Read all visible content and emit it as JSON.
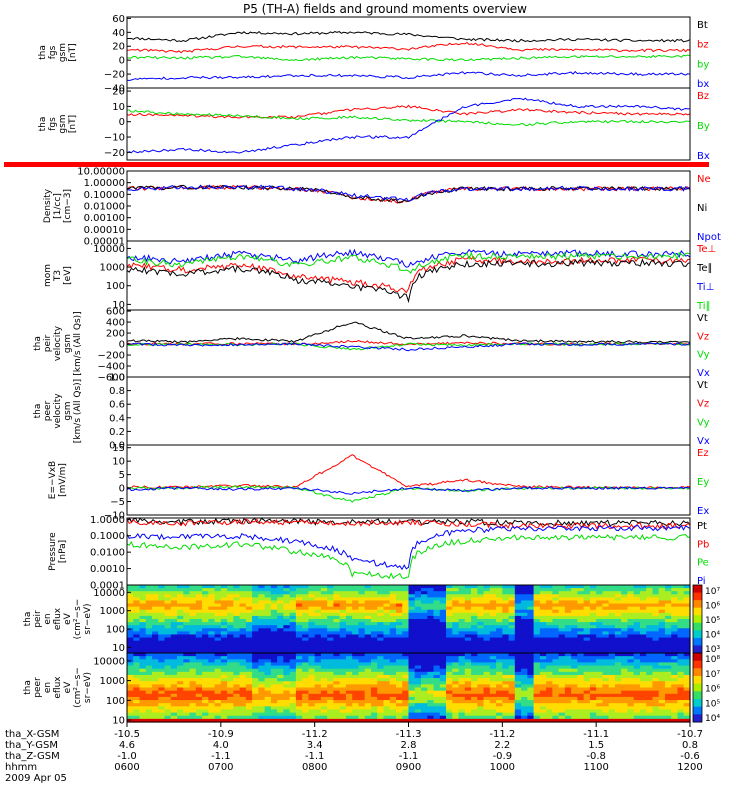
{
  "chart_data": {
    "type": "line",
    "title": "P5 (TH-A) fields and ground moments overview",
    "date": "2009 Apr 05",
    "x_time_ticks": [
      "0600",
      "0700",
      "0800",
      "0900",
      "1000",
      "1100",
      "1200"
    ],
    "time_range": [
      "0600",
      "1200"
    ],
    "orbit_rows": [
      {
        "label": "tha_X-GSM",
        "values": [
          "-10.5",
          "-10.9",
          "-11.2",
          "-11.3",
          "-11.2",
          "-11.1",
          "-10.7"
        ]
      },
      {
        "label": "tha_Y-GSM",
        "values": [
          "4.6",
          "4.0",
          "3.4",
          "2.8",
          "2.2",
          "1.5",
          "0.8"
        ]
      },
      {
        "label": "tha_Z-GSM",
        "values": [
          "-1.0",
          "-1.1",
          "-1.1",
          "-1.1",
          "-0.9",
          "-0.8",
          "-0.6"
        ]
      },
      {
        "label": "hhmm",
        "values": []
      }
    ],
    "panels": [
      {
        "id": "fgs",
        "ylabel": [
          "tha",
          "fgs",
          "gsm",
          "[nT]"
        ],
        "scale": "linear",
        "ylim": [
          -40,
          62
        ],
        "yticks": [
          "60",
          "40",
          "20",
          "0",
          "−20",
          "−40"
        ],
        "tick_values": [
          60,
          40,
          20,
          0,
          -20,
          -40
        ],
        "series": [
          {
            "name": "Bt",
            "color": "#000000",
            "values": [
              32,
              28,
              40,
              38,
              40,
              37,
              30,
              28,
              30,
              28,
              28
            ]
          },
          {
            "name": "bz",
            "color": "#ff0000",
            "values": [
              15,
              12,
              20,
              19,
              19,
              16,
              25,
              15,
              15,
              14,
              14
            ]
          },
          {
            "name": "by",
            "color": "#00dd00",
            "values": [
              4,
              3,
              5,
              0,
              4,
              2,
              0,
              3,
              5,
              5,
              6
            ]
          },
          {
            "name": "bx",
            "color": "#0000ff",
            "values": [
              -28,
              -25,
              -25,
              -22,
              -22,
              -25,
              -18,
              -22,
              -18,
              -20,
              -20
            ]
          }
        ]
      },
      {
        "id": "fgs-dsl",
        "ylabel": [
          "tha",
          "fgs",
          "gsm",
          "[nT]"
        ],
        "scale": "linear",
        "ylim": [
          -25,
          22
        ],
        "yticks": [
          "20",
          "10",
          "0",
          "−10",
          "−20"
        ],
        "tick_values": [
          20,
          10,
          0,
          -10,
          -20
        ],
        "series": [
          {
            "name": "Bz",
            "color": "#ff0000",
            "values": [
              5,
              4,
              3,
              3,
              8,
              10,
              5,
              8,
              6,
              5,
              5
            ]
          },
          {
            "name": "By",
            "color": "#00dd00",
            "values": [
              7,
              5,
              4,
              2,
              3,
              1,
              0,
              -2,
              0,
              0,
              0
            ]
          },
          {
            "name": "Bx",
            "color": "#0000ff",
            "values": [
              -20,
              -18,
              -20,
              -15,
              -10,
              -10,
              10,
              15,
              10,
              10,
              8
            ]
          }
        ]
      },
      {
        "id": "density",
        "ylabel": [
          "Density",
          "[1/cc]",
          "[cm−3]"
        ],
        "scale": "log",
        "ylim": [
          1e-05,
          10
        ],
        "yticks": [
          "10.00000",
          "1.00000",
          "0.10000",
          "0.01000",
          "0.00100",
          "0.00010",
          "0.00001"
        ],
        "tick_values": [
          10,
          1,
          0.1,
          0.01,
          0.001,
          0.0001,
          1e-05
        ],
        "series": [
          {
            "name": "Ne",
            "color": "#ff0000",
            "values": [
              0.3,
              0.4,
              0.4,
              0.3,
              0.05,
              0.02,
              0.3,
              0.3,
              0.3,
              0.3,
              0.3
            ]
          },
          {
            "name": "Ni",
            "color": "#000000",
            "values": [
              0.3,
              0.4,
              0.4,
              0.3,
              0.06,
              0.02,
              0.3,
              0.3,
              0.3,
              0.3,
              0.3
            ]
          },
          {
            "name": "Npot",
            "color": "#0000ff",
            "values": [
              0.3,
              0.4,
              0.45,
              0.3,
              0.08,
              0.03,
              0.3,
              0.3,
              0.35,
              0.3,
              0.3
            ]
          }
        ]
      },
      {
        "id": "mom-temperature",
        "ylabel": [
          "mom",
          "T3",
          "[eV]"
        ],
        "scale": "log",
        "ylim": [
          5,
          25000
        ],
        "yticks": [
          "10000",
          "1000",
          "100",
          "10"
        ],
        "tick_values": [
          10000,
          1000,
          100,
          10
        ],
        "series": [
          {
            "name": "Te⊥",
            "color": "#ff0000",
            "values": [
              1200,
              700,
              1200,
              300,
              150,
              50,
              2500,
              2000,
              2200,
              2300,
              2200
            ]
          },
          {
            "name": "Te∥",
            "color": "#000000",
            "values": [
              800,
              400,
              800,
              200,
              90,
              20,
              1500,
              1500,
              1600,
              1700,
              1600
            ]
          },
          {
            "name": "Ti⊥",
            "color": "#0000ff",
            "values": [
              3500,
              1800,
              5000,
              2000,
              6000,
              1000,
              6000,
              5000,
              5500,
              5000,
              5000
            ]
          },
          {
            "name": "Ti∥",
            "color": "#00dd00",
            "values": [
              2500,
              1200,
              3500,
              1200,
              3000,
              500,
              4000,
              3500,
              4000,
              4000,
              4000
            ]
          }
        ]
      },
      {
        "id": "peir-velocity",
        "ylabel": [
          "tha",
          "peir",
          "velocity",
          "gsm",
          "[km/s (All Qs)]"
        ],
        "scale": "linear",
        "ylim": [
          -600,
          620
        ],
        "yticks": [
          "600",
          "400",
          "200",
          "0",
          "−200",
          "−400",
          "−600"
        ],
        "tick_values": [
          600,
          400,
          200,
          0,
          -200,
          -400,
          -600
        ],
        "series": [
          {
            "name": "Vt",
            "color": "#000000",
            "values": [
              60,
              40,
              100,
              50,
              400,
              100,
              150,
              60,
              50,
              40,
              40
            ]
          },
          {
            "name": "Vz",
            "color": "#ff0000",
            "values": [
              5,
              0,
              10,
              0,
              50,
              0,
              20,
              5,
              0,
              5,
              0
            ]
          },
          {
            "name": "Vy",
            "color": "#00dd00",
            "values": [
              -5,
              0,
              -10,
              0,
              -100,
              0,
              -20,
              0,
              -5,
              0,
              0
            ]
          },
          {
            "name": "Vx",
            "color": "#0000ff",
            "values": [
              0,
              -20,
              -10,
              0,
              -50,
              -100,
              -50,
              0,
              -10,
              0,
              0
            ]
          }
        ]
      },
      {
        "id": "peer-velocity",
        "ylabel": [
          "tha",
          "peer",
          "velocity",
          "gsm",
          "[km/s (All Qs)]"
        ],
        "scale": "linear",
        "ylim": [
          0,
          1.0
        ],
        "yticks": [
          "1.0",
          "0.8",
          "0.6",
          "0.4",
          "0.2",
          "0.0"
        ],
        "tick_values": [
          1.0,
          0.8,
          0.6,
          0.4,
          0.2,
          0.0
        ],
        "series": [
          {
            "name": "Vt",
            "color": "#000000",
            "values": []
          },
          {
            "name": "Vz",
            "color": "#ff0000",
            "values": []
          },
          {
            "name": "Vy",
            "color": "#00dd00",
            "values": []
          },
          {
            "name": "Vx",
            "color": "#0000ff",
            "values": []
          }
        ]
      },
      {
        "id": "e-field",
        "ylabel": [
          "E=−VxB",
          "[mV/m]"
        ],
        "scale": "linear",
        "ylim": [
          -10,
          16
        ],
        "yticks": [
          "15",
          "10",
          "5",
          "0",
          "−5",
          "−10"
        ],
        "tick_values": [
          15,
          10,
          5,
          0,
          -5,
          -10
        ],
        "series": [
          {
            "name": "Ez",
            "color": "#ff0000",
            "values": [
              0.5,
              0.3,
              1,
              0.5,
              12,
              0.5,
              3,
              0.5,
              0.3,
              0.3,
              0.3
            ]
          },
          {
            "name": "Ey",
            "color": "#00dd00",
            "values": [
              0,
              0,
              0.5,
              0,
              -5,
              0,
              -1,
              0,
              0,
              0,
              0
            ]
          },
          {
            "name": "Ex",
            "color": "#0000ff",
            "values": [
              -0.5,
              0,
              -0.5,
              0,
              -2,
              0,
              -1,
              0,
              0,
              0,
              0
            ]
          }
        ]
      },
      {
        "id": "pressure",
        "ylabel": [
          "Pressure",
          "[nPa]"
        ],
        "scale": "log",
        "ylim": [
          0.0001,
          1.2
        ],
        "yticks": [
          "1.0000",
          "0.1000",
          "0.0100",
          "0.0010",
          "0.0001"
        ],
        "tick_values": [
          1,
          0.1,
          0.01,
          0.001,
          0.0001
        ],
        "series": [
          {
            "name": "Pt",
            "color": "#000000",
            "values": [
              0.8,
              0.7,
              0.8,
              0.7,
              0.7,
              0.7,
              0.7,
              0.6,
              0.6,
              0.6,
              0.6
            ]
          },
          {
            "name": "Pb",
            "color": "#ff0000",
            "values": [
              0.7,
              0.6,
              0.7,
              0.65,
              0.6,
              0.65,
              0.5,
              0.4,
              0.4,
              0.4,
              0.4
            ]
          },
          {
            "name": "Pe",
            "color": "#00dd00",
            "values": [
              0.03,
              0.02,
              0.03,
              0.01,
              0.0005,
              0.0003,
              0.05,
              0.08,
              0.08,
              0.08,
              0.08
            ]
          },
          {
            "name": "Pi",
            "color": "#0000ff",
            "values": [
              0.1,
              0.08,
              0.1,
              0.04,
              0.003,
              0.001,
              0.2,
              0.3,
              0.3,
              0.3,
              0.3
            ]
          }
        ]
      },
      {
        "id": "peir-eflux",
        "type": "heatmap",
        "ylabel": [
          "tha",
          "peir",
          "en",
          "eflux",
          "eV",
          "(cm²−s−",
          "sr−eV)"
        ],
        "scale": "log",
        "ylim": [
          5,
          25000
        ],
        "yticks": [
          "10000",
          "1000",
          "100",
          "10"
        ],
        "tick_values": [
          10000,
          1000,
          100,
          10
        ],
        "colorbar": {
          "ticks": [
            "10⁷",
            "10⁶",
            "10⁵",
            "10⁴",
            "10³"
          ],
          "range": [
            3,
            7
          ]
        }
      },
      {
        "id": "peer-eflux",
        "type": "heatmap",
        "ylabel": [
          "tha",
          "peer",
          "en",
          "eflux",
          "eV",
          "(cm²−s−",
          "sr−eV)"
        ],
        "scale": "log",
        "ylim": [
          8,
          25000
        ],
        "yticks": [
          "10000",
          "1000",
          "100",
          "10"
        ],
        "tick_values": [
          10000,
          1000,
          100,
          10
        ],
        "colorbar": {
          "ticks": [
            "10⁸",
            "10⁷",
            "10⁶",
            "10⁵",
            "10⁴"
          ],
          "range": [
            3.6,
            8.2
          ]
        }
      }
    ]
  }
}
